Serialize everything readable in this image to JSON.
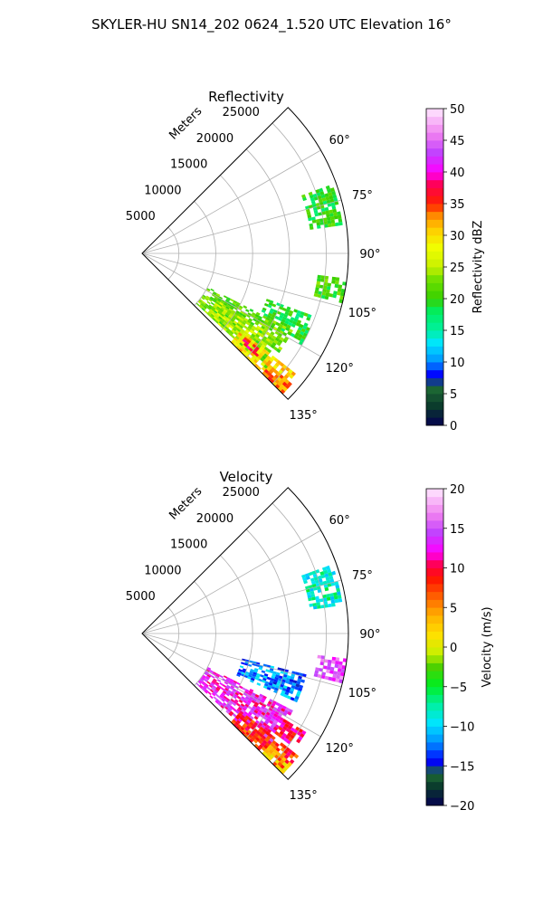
{
  "figure": {
    "suptitle": "SKYLER-HU  SN14_202  0624_1.520 UTC Elevation 16°"
  },
  "chart_data": [
    {
      "type": "heatmap",
      "subtype": "polar-sector",
      "title": "Reflectivity",
      "radial_label": "Meters",
      "radial_ticks": [
        5000,
        10000,
        15000,
        20000,
        25000
      ],
      "radial_tick_labels": [
        "5000",
        "10000",
        "15000",
        "20000",
        "25000"
      ],
      "rlim": [
        0,
        28000
      ],
      "theta_range_deg": [
        45,
        135
      ],
      "theta_ticks_deg": [
        60,
        75,
        90,
        105,
        120,
        135
      ],
      "theta_tick_labels": [
        "60°",
        "75°",
        "90°",
        "105°",
        "120°",
        "135°"
      ],
      "grid": true,
      "colorbar": {
        "label": "Reflectivity dBZ",
        "range": [
          0,
          50
        ],
        "ticks": [
          0,
          5,
          10,
          15,
          20,
          25,
          30,
          35,
          40,
          45,
          50
        ],
        "tick_labels": [
          "0",
          "5",
          "10",
          "15",
          "20",
          "25",
          "30",
          "35",
          "40",
          "45",
          "50"
        ]
      },
      "echo_regions": [
        {
          "theta_min": 70,
          "theta_max": 82,
          "r_min": 23000,
          "r_max": 27500,
          "value": 20
        },
        {
          "theta_min": 97,
          "theta_max": 104,
          "r_min": 24000,
          "r_max": 28000,
          "value": 21
        },
        {
          "theta_min": 110,
          "theta_max": 120,
          "r_min": 18000,
          "r_max": 25000,
          "value": 19
        },
        {
          "theta_min": 117,
          "theta_max": 133,
          "r_min": 10000,
          "r_max": 23000,
          "value": 22
        },
        {
          "theta_min": 122,
          "theta_max": 133,
          "r_min": 12000,
          "r_max": 21000,
          "value": 25
        },
        {
          "theta_min": 128,
          "theta_max": 135,
          "r_min": 17000,
          "r_max": 27000,
          "value": 30
        },
        {
          "theta_min": 129,
          "theta_max": 132,
          "r_min": 18000,
          "r_max": 21000,
          "value": 37
        },
        {
          "theta_min": 131,
          "theta_max": 135,
          "r_min": 23000,
          "r_max": 27000,
          "value": 33
        }
      ]
    },
    {
      "type": "heatmap",
      "subtype": "polar-sector",
      "title": "Velocity",
      "radial_label": "Meters",
      "radial_ticks": [
        5000,
        10000,
        15000,
        20000,
        25000
      ],
      "radial_tick_labels": [
        "5000",
        "10000",
        "15000",
        "20000",
        "25000"
      ],
      "rlim": [
        0,
        28000
      ],
      "theta_range_deg": [
        45,
        135
      ],
      "theta_ticks_deg": [
        60,
        75,
        90,
        105,
        120,
        135
      ],
      "theta_tick_labels": [
        "60°",
        "75°",
        "90°",
        "105°",
        "120°",
        "135°"
      ],
      "grid": true,
      "colorbar": {
        "label": "Velocity (m/s)",
        "range": [
          -20,
          20
        ],
        "ticks": [
          -20,
          -15,
          -10,
          -5,
          0,
          5,
          10,
          15,
          20
        ],
        "tick_labels": [
          "−20",
          "−15",
          "−10",
          "−5",
          "0",
          "5",
          "10",
          "15",
          "20"
        ]
      },
      "echo_regions": [
        {
          "theta_min": 70,
          "theta_max": 82,
          "r_min": 23000,
          "r_max": 27500,
          "value": -8
        },
        {
          "theta_min": 97,
          "theta_max": 104,
          "r_min": 24000,
          "r_max": 28000,
          "value": 15
        },
        {
          "theta_min": 104,
          "theta_max": 114,
          "r_min": 14000,
          "r_max": 23000,
          "value": -12
        },
        {
          "theta_min": 117,
          "theta_max": 133,
          "r_min": 10000,
          "r_max": 23000,
          "value": 13
        },
        {
          "theta_min": 121,
          "theta_max": 127,
          "r_min": 22000,
          "r_max": 26000,
          "value": 10
        },
        {
          "theta_min": 128,
          "theta_max": 135,
          "r_min": 17000,
          "r_max": 27000,
          "value": 8
        },
        {
          "theta_min": 131,
          "theta_max": 135,
          "r_min": 23000,
          "r_max": 27000,
          "value": 3
        }
      ]
    }
  ]
}
